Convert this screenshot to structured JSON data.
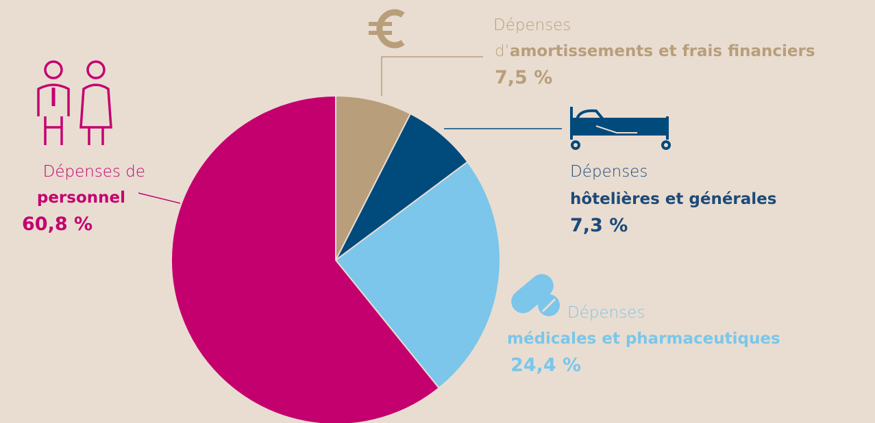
{
  "chart_data": {
    "type": "pie",
    "categories": [
      {
        "light": "Dépenses",
        "prefix": "d’",
        "bold": "amortissements et frais financiers"
      },
      {
        "light": "Dépenses",
        "bold": "hôtelières et générales"
      },
      {
        "light": "Dépenses",
        "bold": "médicales et pharmaceutiques"
      },
      {
        "light": "Dépenses de",
        "bold": "personnel"
      }
    ],
    "values": [
      7.5,
      7.3,
      24.4,
      60.8
    ],
    "value_labels": [
      "7,5 %",
      "7,3 %",
      "24,4 %",
      "60,8 %"
    ],
    "colors": [
      "#b89e7a",
      "#004a7c",
      "#7bc6ea",
      "#c4006f"
    ]
  }
}
